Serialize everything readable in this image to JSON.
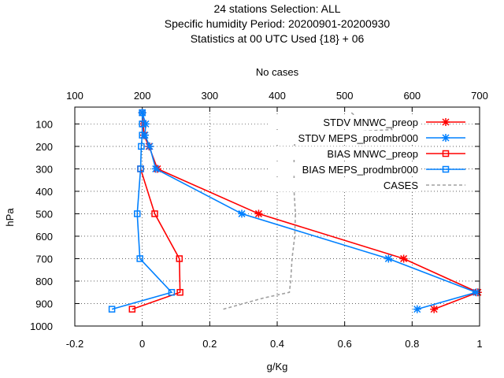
{
  "chart_data": {
    "type": "line",
    "title_lines": [
      "24 stations Selection: ALL",
      "Specific humidity  Period: 20200901-20200930",
      "Statistics at 00 UTC  Used {18} + 06"
    ],
    "xlabel": "g/Kg",
    "ylabel": "hPa",
    "x2label": "No cases",
    "xlim": [
      -0.2,
      1.0
    ],
    "x_ticks": [
      "-0.2",
      "0",
      "0.2",
      "0.4",
      "0.6",
      "0.8",
      "1"
    ],
    "x_tick_values": [
      -0.2,
      0,
      0.2,
      0.4,
      0.6,
      0.8,
      1.0
    ],
    "x2lim": [
      100,
      700
    ],
    "x2_ticks": [
      "100",
      "200",
      "300",
      "400",
      "500",
      "600",
      "700"
    ],
    "x2_tick_values": [
      100,
      200,
      300,
      400,
      500,
      600,
      700
    ],
    "ylim": [
      1000,
      25
    ],
    "y_ticks": [
      "100",
      "200",
      "300",
      "400",
      "500",
      "600",
      "700",
      "800",
      "900",
      "1000"
    ],
    "y_tick_values": [
      100,
      200,
      300,
      400,
      500,
      600,
      700,
      800,
      900,
      1000
    ],
    "grid": true,
    "legend_position": "top-right",
    "series": [
      {
        "name": "STDV MNWC_preop",
        "color": "#ff0000",
        "marker": "star",
        "axis": "x1",
        "points": [
          [
            0.0,
            50
          ],
          [
            0.003,
            100
          ],
          [
            0.005,
            150
          ],
          [
            0.02,
            200
          ],
          [
            0.045,
            300
          ],
          [
            0.345,
            500
          ],
          [
            0.775,
            700
          ],
          [
            0.995,
            850
          ],
          [
            0.865,
            925
          ]
        ]
      },
      {
        "name": "STDV MEPS_prodmbr000",
        "color": "#0080ff",
        "marker": "star",
        "axis": "x1",
        "points": [
          [
            0.0,
            50
          ],
          [
            0.01,
            100
          ],
          [
            0.008,
            150
          ],
          [
            0.022,
            200
          ],
          [
            0.04,
            300
          ],
          [
            0.295,
            500
          ],
          [
            0.73,
            700
          ],
          [
            0.99,
            850
          ],
          [
            0.815,
            925
          ]
        ]
      },
      {
        "name": "BIAS MNWC_preop",
        "color": "#ff0000",
        "marker": "square",
        "axis": "x1",
        "points": [
          [
            -0.005,
            300
          ],
          [
            0.037,
            500
          ],
          [
            0.11,
            700
          ],
          [
            0.112,
            850
          ],
          [
            -0.03,
            925
          ]
        ]
      },
      {
        "name": "BIAS MEPS_prodmbr000",
        "color": "#0080ff",
        "marker": "square",
        "axis": "x1",
        "points": [
          [
            0.0,
            50
          ],
          [
            0.0,
            100
          ],
          [
            0.0,
            150
          ],
          [
            -0.003,
            200
          ],
          [
            -0.005,
            300
          ],
          [
            -0.015,
            500
          ],
          [
            -0.007,
            700
          ],
          [
            0.087,
            850
          ],
          [
            -0.09,
            925
          ]
        ]
      },
      {
        "name": "CASES",
        "color": "#a0a0a0",
        "marker": "none",
        "dashed": true,
        "axis": "x2",
        "points": [
          [
            510,
            50
          ],
          [
            520,
            75
          ],
          [
            565,
            100
          ],
          [
            570,
            125
          ],
          [
            430,
            150
          ],
          [
            425,
            200
          ],
          [
            425,
            300
          ],
          [
            425,
            400
          ],
          [
            427,
            500
          ],
          [
            426,
            600
          ],
          [
            422,
            700
          ],
          [
            420,
            800
          ],
          [
            418,
            850
          ],
          [
            380,
            875
          ],
          [
            320,
            925
          ]
        ]
      }
    ]
  }
}
